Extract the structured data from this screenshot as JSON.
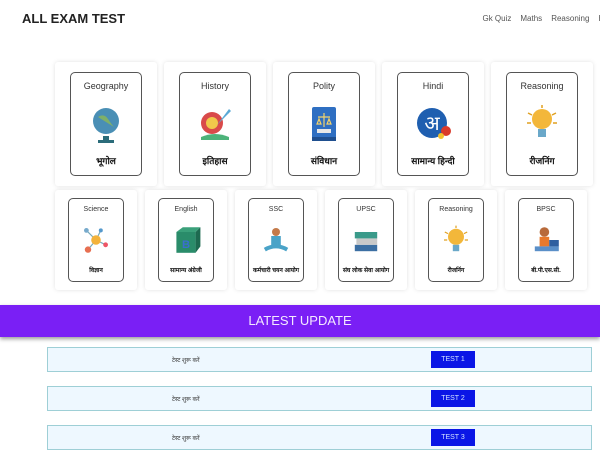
{
  "header": {
    "brand": "ALL EXAM TEST",
    "nav": [
      "Gk Quiz",
      "Maths",
      "Reasoning",
      "Hi"
    ]
  },
  "row1": [
    {
      "en": "Geography",
      "hi": "भूगोल",
      "icon": "globe-icon"
    },
    {
      "en": "History",
      "hi": "इतिहास",
      "icon": "history-icon"
    },
    {
      "en": "Polity",
      "hi": "संविधान",
      "icon": "law-book-icon"
    },
    {
      "en": "Hindi",
      "hi": "सामान्य हिन्दी",
      "icon": "hindi-letter-icon"
    },
    {
      "en": "Reasoning",
      "hi": "रीजनिंग",
      "icon": "lightbulb-icon"
    }
  ],
  "row2": [
    {
      "en": "Science",
      "hi": "विज्ञान",
      "icon": "molecule-icon"
    },
    {
      "en": "English",
      "hi": "सामान्य अंग्रेजी",
      "icon": "abc-block-icon"
    },
    {
      "en": "SSC",
      "hi": "कर्मचारी चयन आयोग",
      "icon": "student-icon"
    },
    {
      "en": "UPSC",
      "hi": "संघ लोक सेवा आयोग",
      "icon": "books-icon"
    },
    {
      "en": "Reasoning",
      "hi": "रीजनिंग",
      "icon": "lightbulb-icon"
    },
    {
      "en": "BPSC",
      "hi": "बी.पी.एस.सी.",
      "icon": "boy-laptop-icon"
    }
  ],
  "banner": "LATEST UPDATE",
  "tests": [
    {
      "label": "टेस्ट शुरू करें",
      "button": "TEST 1"
    },
    {
      "label": "टेस्ट शुरू करें",
      "button": "TEST 2"
    },
    {
      "label": "टेस्ट शुरू करें",
      "button": "TEST 3"
    }
  ],
  "colors": {
    "banner": "#7a1ff5",
    "button": "#0a16e6"
  }
}
